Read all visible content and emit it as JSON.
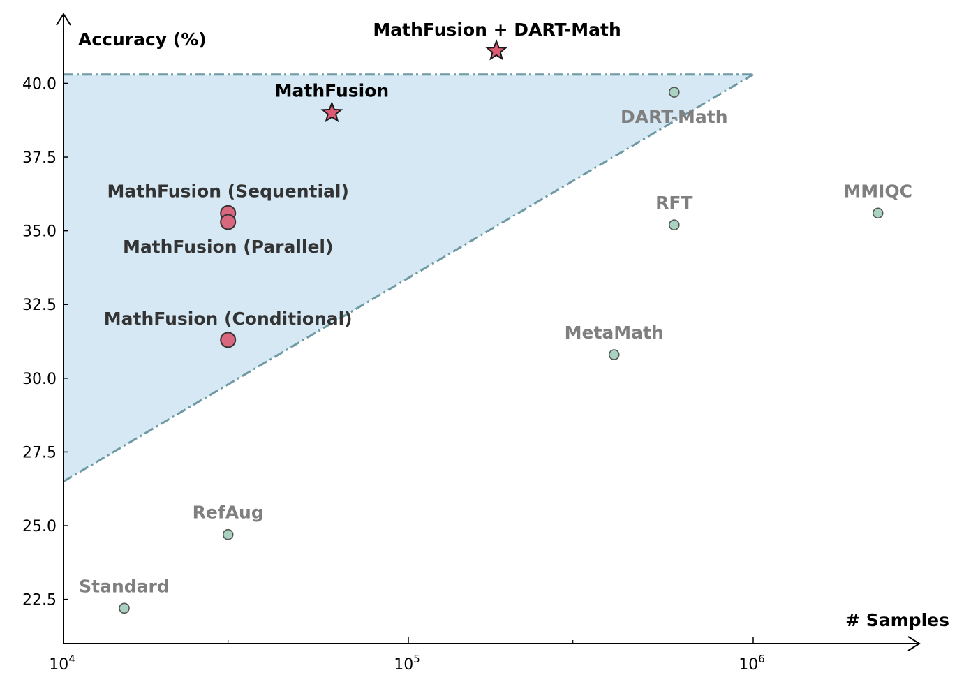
{
  "chart_data": {
    "type": "scatter",
    "title": "",
    "xlabel": "# Samples",
    "ylabel": "Accuracy (%)",
    "xscale": "log",
    "xlim": [
      10000,
      3000000
    ],
    "ylim": [
      21.0,
      42.4
    ],
    "xticks": [
      {
        "value": 10000,
        "base": "10",
        "exp": "4"
      },
      {
        "value": 100000,
        "base": "10",
        "exp": "5"
      },
      {
        "value": 1000000,
        "base": "10",
        "exp": "6"
      }
    ],
    "x_minor_ticks": [
      30000,
      300000
    ],
    "yticks": [
      "22.5",
      "25.0",
      "27.5",
      "30.0",
      "32.5",
      "35.0",
      "37.5",
      "40.0"
    ],
    "grid": false,
    "shaded_region": {
      "color": "#d6e8f4",
      "line_color": "#6e9aa3",
      "vertices": [
        {
          "x": 10000,
          "y": 40.3
        },
        {
          "x": 1000000,
          "y": 40.3
        },
        {
          "x": 10000,
          "y": 26.5
        }
      ]
    },
    "series": [
      {
        "color": "#a9d2c1",
        "marker": "circle",
        "points": [
          {
            "label": "Standard",
            "x": 15000,
            "y": 22.2
          },
          {
            "label": "RefAug",
            "x": 30000,
            "y": 24.7
          },
          {
            "label": "MetaMath",
            "x": 395000,
            "y": 30.8
          },
          {
            "label": "RFT",
            "x": 590000,
            "y": 35.2
          },
          {
            "label": "DART-Math",
            "x": 590000,
            "y": 39.7
          },
          {
            "label": "MMIQC",
            "x": 2300000,
            "y": 35.6
          }
        ]
      },
      {
        "color": "#d9687e",
        "marker": "circle-large",
        "points": [
          {
            "label": "MathFusion (Sequential)",
            "x": 30000,
            "y": 35.6
          },
          {
            "label": "MathFusion (Parallel)",
            "x": 30000,
            "y": 35.3
          },
          {
            "label": "MathFusion (Conditional)",
            "x": 30000,
            "y": 31.3
          }
        ]
      },
      {
        "color": "#dc5b74",
        "marker": "star",
        "points": [
          {
            "label": "MathFusion",
            "x": 60000,
            "y": 39.0
          },
          {
            "label": "MathFusion + DART-Math",
            "x": 180000,
            "y": 41.1
          }
        ]
      }
    ]
  }
}
